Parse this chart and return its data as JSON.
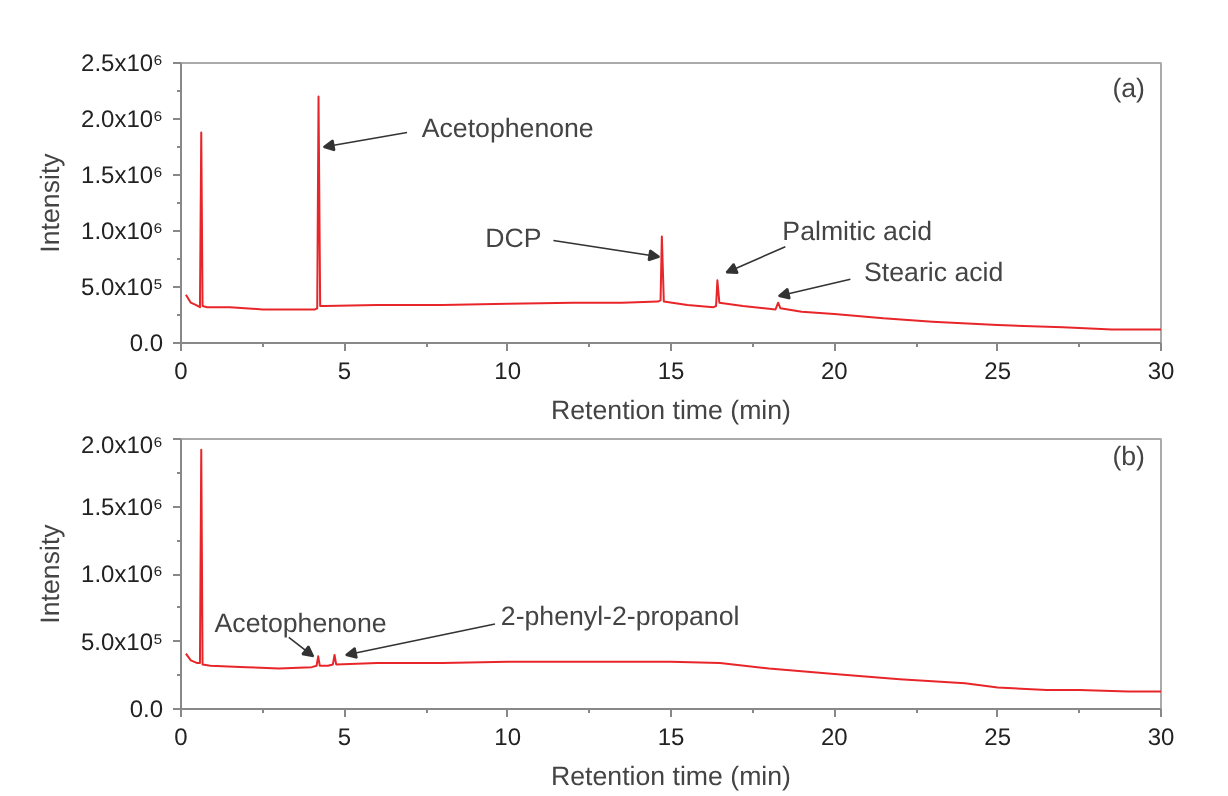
{
  "chart_data": [
    {
      "type": "line",
      "xlabel": "Retention time (min)",
      "ylabel": "Intensity",
      "series": [
        {
          "color": "#e8262a",
          "x": [
            0.15,
            0.3,
            0.45,
            0.58,
            0.62,
            0.66,
            0.8,
            1.5,
            2.5,
            3.5,
            4.1,
            4.17,
            4.21,
            4.26,
            4.4,
            6,
            8,
            10,
            12,
            13.5,
            14.6,
            14.68,
            14.72,
            14.78,
            15.5,
            16.3,
            16.38,
            16.42,
            16.48,
            17.2,
            18.2,
            18.28,
            18.35,
            19,
            20,
            21.5,
            23,
            25,
            27,
            28.5,
            30
          ],
          "values": [
            430000,
            360000,
            340000,
            320000,
            1880000,
            330000,
            320000,
            320000,
            300000,
            300000,
            300000,
            310000,
            2200000,
            330000,
            330000,
            340000,
            340000,
            350000,
            360000,
            360000,
            370000,
            380000,
            950000,
            370000,
            340000,
            320000,
            330000,
            560000,
            360000,
            330000,
            300000,
            360000,
            310000,
            280000,
            260000,
            220000,
            190000,
            160000,
            140000,
            120000,
            120000
          ]
        }
      ],
      "xlim": [
        0,
        30
      ],
      "xticks": [
        0,
        5,
        10,
        15,
        20,
        25,
        30
      ],
      "ylim": [
        0,
        2500000
      ],
      "yticks": [
        {
          "value": 0,
          "label": "0.0"
        },
        {
          "value": 500000,
          "label": "5.0x10⁵"
        },
        {
          "value": 1000000,
          "label": "1.0x10⁶"
        },
        {
          "value": 1500000,
          "label": "1.5x10⁶"
        },
        {
          "value": 2000000,
          "label": "2.0x10⁶"
        },
        {
          "value": 2500000,
          "label": "2.5x10⁶"
        }
      ],
      "grid": false,
      "marker": "none",
      "line_style": "solid",
      "annotations": [
        "(a)",
        {
          "text": "Acetophenone",
          "x": 4.22,
          "y": 1750000
        },
        {
          "text": "DCP",
          "x": 14.7,
          "y": 770000
        },
        {
          "text": "Palmitic acid",
          "x": 16.42,
          "y": 560000
        },
        {
          "text": "Stearic acid",
          "x": 18.28,
          "y": 360000
        }
      ]
    },
    {
      "type": "line",
      "xlabel": "Retention time (min)",
      "ylabel": "Intensity",
      "series": [
        {
          "color": "#e8262a",
          "x": [
            0.15,
            0.3,
            0.5,
            0.58,
            0.62,
            0.66,
            0.9,
            2,
            3,
            4,
            4.15,
            4.2,
            4.25,
            4.5,
            4.65,
            4.7,
            4.75,
            6,
            8,
            10,
            12,
            14,
            15,
            16.5,
            18,
            20,
            22,
            24,
            25,
            26.5,
            27.5,
            29,
            30
          ],
          "values": [
            410000,
            360000,
            340000,
            340000,
            1920000,
            330000,
            320000,
            310000,
            300000,
            310000,
            320000,
            390000,
            320000,
            320000,
            330000,
            400000,
            330000,
            340000,
            340000,
            350000,
            350000,
            350000,
            350000,
            340000,
            300000,
            260000,
            220000,
            190000,
            160000,
            140000,
            140000,
            130000,
            130000
          ]
        }
      ],
      "xlim": [
        0,
        30
      ],
      "xticks": [
        0,
        5,
        10,
        15,
        20,
        25,
        30
      ],
      "ylim": [
        0,
        2000000
      ],
      "yticks": [
        {
          "value": 0,
          "label": "0.0"
        },
        {
          "value": 500000,
          "label": "5.0x10⁵"
        },
        {
          "value": 1000000,
          "label": "1.0x10⁶"
        },
        {
          "value": 1500000,
          "label": "1.5x10⁶"
        },
        {
          "value": 2000000,
          "label": "2.0x10⁶"
        }
      ],
      "grid": false,
      "marker": "none",
      "line_style": "solid",
      "annotations": [
        "(b)",
        {
          "text": "Acetophenone",
          "x": 4.2,
          "y": 390000
        },
        {
          "text": "2-phenyl-2-propanol",
          "x": 4.7,
          "y": 400000
        }
      ]
    }
  ]
}
